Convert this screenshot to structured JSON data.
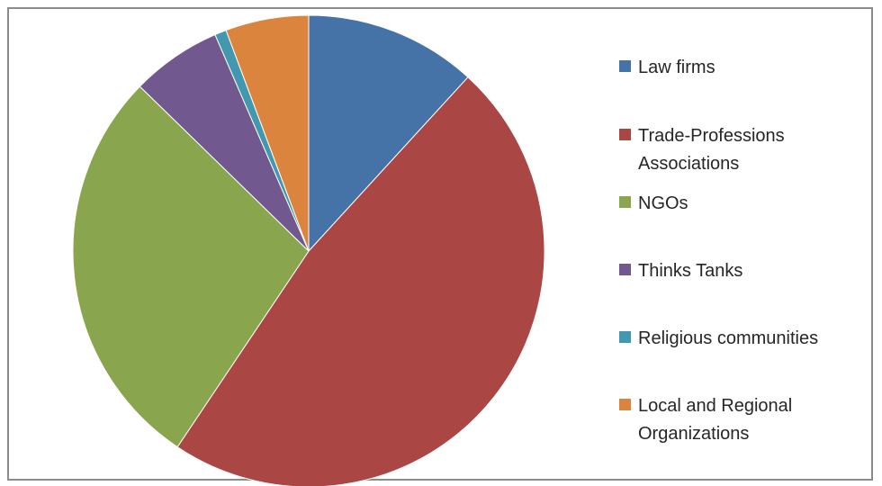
{
  "chart_data": {
    "type": "pie",
    "categories": [
      "Law firms",
      "Trade-Professions Associations",
      "NGOs",
      "Thinks Tanks",
      "Religious communities",
      "Local and Regional Organizations"
    ],
    "values": [
      11.8,
      47.6,
      27.9,
      6.2,
      0.8,
      5.7
    ],
    "colors": [
      "#4572A7",
      "#AA4643",
      "#89A54E",
      "#71588F",
      "#4198AF",
      "#DB843D"
    ],
    "legend_position": "right",
    "legend_labels": [
      "Law firms",
      "Trade-Professions\nAssociations",
      "NGOs",
      "Thinks Tanks",
      "Religious communities",
      "Local and Regional\nOrganizations"
    ]
  }
}
